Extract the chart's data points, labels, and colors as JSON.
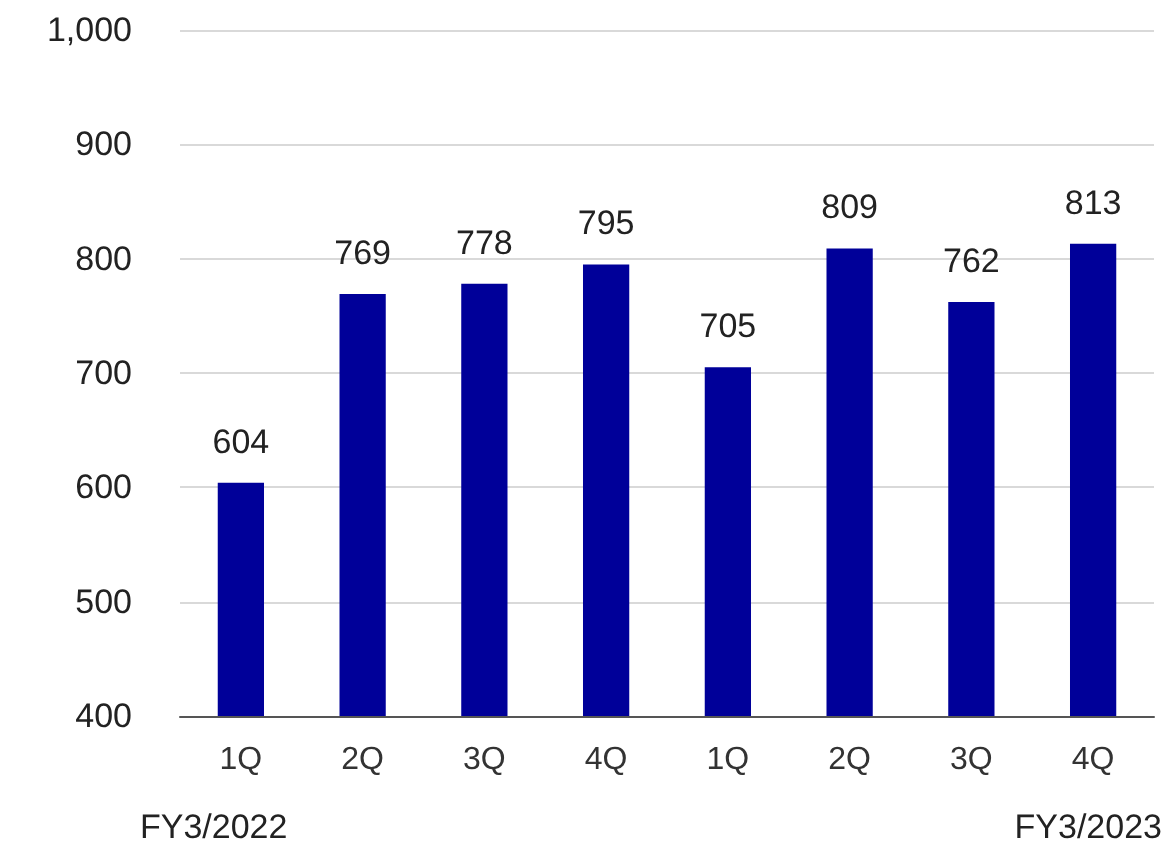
{
  "chart_data": {
    "type": "bar",
    "categories": [
      "1Q",
      "2Q",
      "3Q",
      "4Q",
      "1Q",
      "2Q",
      "3Q",
      "4Q"
    ],
    "values": [
      604,
      769,
      778,
      795,
      705,
      809,
      762,
      813
    ],
    "color": "#000099",
    "ylim": [
      400,
      1000
    ],
    "yticks": [
      400,
      500,
      600,
      700,
      800,
      900,
      {
        "value": 1000,
        "label": "1,000"
      }
    ],
    "grid": "y",
    "data_labels": true,
    "annotations": [
      "FY3/2022",
      "FY3/2023"
    ]
  }
}
